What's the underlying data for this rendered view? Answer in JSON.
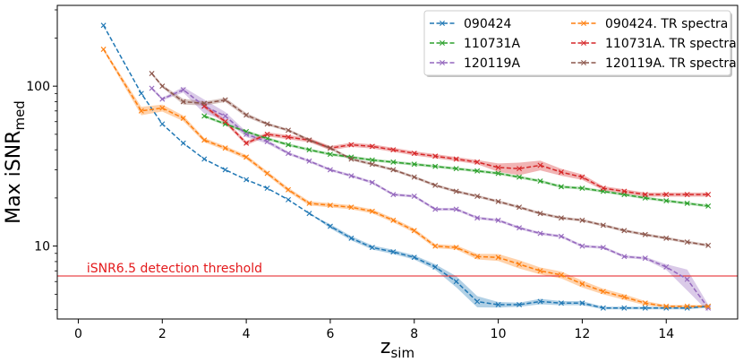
{
  "chart_data": {
    "type": "line",
    "xlabel": "z",
    "xlabel_sub": "sim",
    "ylabel": "Max iSNR",
    "ylabel_sub": "med",
    "yscale": "log",
    "xlim": [
      -0.5,
      15.7
    ],
    "ylim": [
      3.5,
      320
    ],
    "xticks": [
      0,
      2,
      4,
      6,
      8,
      10,
      12,
      14
    ],
    "xtick_labels": [
      "0",
      "2",
      "4",
      "6",
      "8",
      "10",
      "12",
      "14"
    ],
    "yticks": [
      10,
      100
    ],
    "ytick_labels": [
      "10",
      "100"
    ],
    "legend_position": "top-right",
    "threshold": {
      "value": 6.5,
      "label": "iSNR6.5 detection threshold",
      "color": "#e41a1c"
    },
    "series": [
      {
        "name": "090424",
        "color": "#1f77b4",
        "x": [
          0.6,
          1.5,
          2.0,
          2.5,
          3.0,
          3.5,
          4.0,
          4.5,
          5.0,
          5.5,
          6.0,
          6.5,
          7.0,
          7.5,
          8.0,
          8.5,
          9.0,
          9.5,
          10.0,
          10.5,
          11.0,
          11.5,
          12.0,
          12.5,
          13.0,
          13.5,
          14.0,
          14.5,
          15.0
        ],
        "values": [
          240,
          90,
          58,
          44,
          35,
          30,
          26,
          23,
          19.5,
          16,
          13.3,
          11.2,
          9.8,
          9.2,
          8.5,
          7.4,
          6.0,
          4.5,
          4.3,
          4.3,
          4.5,
          4.4,
          4.4,
          4.1,
          4.1,
          4.1,
          4.1,
          4.1,
          4.2
        ],
        "band": [
          0,
          0,
          0,
          0,
          0,
          0,
          0,
          0,
          0,
          0,
          0.03,
          0.03,
          0.03,
          0.03,
          0.03,
          0.04,
          0.08,
          0.08,
          0.04,
          0.03,
          0.04,
          0.03,
          0.03,
          0.02,
          0.02,
          0.02,
          0.02,
          0.02,
          0.02
        ]
      },
      {
        "name": "110731A",
        "color": "#2ca02c",
        "x": [
          3.0,
          3.5,
          4.0,
          4.5,
          5.0,
          5.5,
          6.0,
          6.5,
          7.0,
          7.5,
          8.0,
          8.5,
          9.0,
          9.5,
          10.0,
          10.5,
          11.0,
          11.5,
          12.0,
          12.5,
          13.0,
          13.5,
          14.0,
          14.5,
          15.0
        ],
        "values": [
          65,
          58,
          52,
          47,
          43,
          40,
          37.5,
          36,
          34.5,
          33.5,
          32.5,
          31.5,
          30.5,
          29.5,
          28.5,
          27,
          25.5,
          23.5,
          23,
          22,
          21,
          20,
          19.2,
          18.5,
          17.8
        ],
        "band": [
          0.02,
          0.02,
          0.02,
          0.02,
          0.02,
          0.02,
          0.02,
          0.02,
          0.02,
          0.02,
          0.02,
          0.02,
          0.02,
          0.02,
          0.02,
          0.02,
          0.02,
          0.02,
          0.02,
          0.02,
          0.02,
          0.02,
          0.02,
          0.02,
          0.02
        ]
      },
      {
        "name": "120119A",
        "color": "#9467bd",
        "x": [
          1.75,
          2.0,
          2.5,
          3.0,
          3.5,
          4.0,
          4.5,
          5.0,
          5.5,
          6.0,
          6.5,
          7.0,
          7.5,
          8.0,
          8.5,
          9.0,
          9.5,
          10.0,
          10.5,
          11.0,
          11.5,
          12.0,
          12.5,
          13.0,
          13.5,
          14.0,
          14.5,
          15.0
        ],
        "values": [
          97,
          83,
          95,
          75,
          65,
          50,
          45,
          38,
          34,
          30,
          27.5,
          25,
          21,
          20.5,
          17,
          17,
          15,
          14.5,
          13,
          12,
          11.5,
          10,
          9.8,
          8.6,
          8.4,
          7.4,
          6.2,
          4.1
        ],
        "band": [
          0.02,
          0.02,
          0.04,
          0.1,
          0.06,
          0.04,
          0.03,
          0.02,
          0.02,
          0.02,
          0.02,
          0.02,
          0.02,
          0.02,
          0.02,
          0.02,
          0.02,
          0.02,
          0.02,
          0.02,
          0.02,
          0.02,
          0.02,
          0.02,
          0.02,
          0.04,
          0.15,
          0.05
        ]
      },
      {
        "name": "090424. TR spectra",
        "color": "#ff7f0e",
        "x": [
          0.6,
          1.5,
          2.0,
          2.5,
          3.0,
          3.5,
          4.0,
          4.5,
          5.0,
          5.5,
          6.0,
          6.5,
          7.0,
          7.5,
          8.0,
          8.5,
          9.0,
          9.5,
          10.0,
          10.5,
          11.0,
          11.5,
          12.0,
          12.5,
          13.0,
          13.5,
          14.0,
          14.5,
          15.0
        ],
        "values": [
          170,
          70,
          73,
          63,
          46,
          41,
          36,
          28.5,
          22.5,
          18.5,
          18,
          17.5,
          16.5,
          14.5,
          12.5,
          10,
          9.8,
          8.6,
          8.5,
          7.7,
          7.0,
          6.6,
          5.8,
          5.2,
          4.8,
          4.4,
          4.2,
          4.2,
          4.2
        ],
        "band": [
          0.02,
          0.06,
          0.05,
          0.04,
          0.03,
          0.03,
          0.03,
          0.03,
          0.03,
          0.03,
          0.03,
          0.03,
          0.03,
          0.03,
          0.03,
          0.03,
          0.03,
          0.04,
          0.05,
          0.06,
          0.05,
          0.05,
          0.05,
          0.04,
          0.04,
          0.03,
          0.02,
          0.02,
          0.02
        ]
      },
      {
        "name": "110731A. TR spectra",
        "color": "#d62728",
        "x": [
          3.0,
          3.5,
          4.0,
          4.5,
          5.0,
          5.5,
          6.0,
          6.5,
          7.0,
          7.5,
          8.0,
          8.5,
          9.0,
          9.5,
          10.0,
          10.5,
          11.0,
          11.5,
          12.0,
          12.5,
          13.0,
          13.5,
          14.0,
          14.5,
          15.0
        ],
        "values": [
          75,
          60,
          44,
          50,
          48,
          46,
          41,
          43,
          42,
          40,
          38,
          36.5,
          35,
          33.5,
          31,
          30.5,
          32,
          29,
          27,
          23,
          22,
          21,
          21,
          21,
          21
        ],
        "band": [
          0.03,
          0.03,
          0.03,
          0.03,
          0.03,
          0.03,
          0.03,
          0.03,
          0.03,
          0.03,
          0.03,
          0.03,
          0.03,
          0.03,
          0.06,
          0.09,
          0.07,
          0.05,
          0.04,
          0.03,
          0.03,
          0.03,
          0.03,
          0.03,
          0.03
        ]
      },
      {
        "name": "120119A. TR spectra",
        "color": "#8c564b",
        "x": [
          1.75,
          2.0,
          2.5,
          3.0,
          3.5,
          4.0,
          4.5,
          5.0,
          5.5,
          6.0,
          6.5,
          7.0,
          7.5,
          8.0,
          8.5,
          9.0,
          9.5,
          10.0,
          10.5,
          11.0,
          11.5,
          12.0,
          12.5,
          13.0,
          13.5,
          14.0,
          14.5,
          15.0
        ],
        "values": [
          120,
          100,
          80,
          78,
          82,
          66,
          58,
          53,
          46,
          41,
          35,
          32.5,
          30,
          27,
          24,
          22,
          20.5,
          19,
          17.5,
          16,
          15,
          14.5,
          13.5,
          12.5,
          11.8,
          11.2,
          10.6,
          10.1
        ],
        "band": [
          0.02,
          0.02,
          0.04,
          0.03,
          0.03,
          0.03,
          0.02,
          0.02,
          0.02,
          0.02,
          0.02,
          0.02,
          0.02,
          0.02,
          0.02,
          0.02,
          0.02,
          0.02,
          0.02,
          0.02,
          0.02,
          0.02,
          0.02,
          0.02,
          0.02,
          0.02,
          0.02,
          0.02
        ]
      }
    ]
  }
}
